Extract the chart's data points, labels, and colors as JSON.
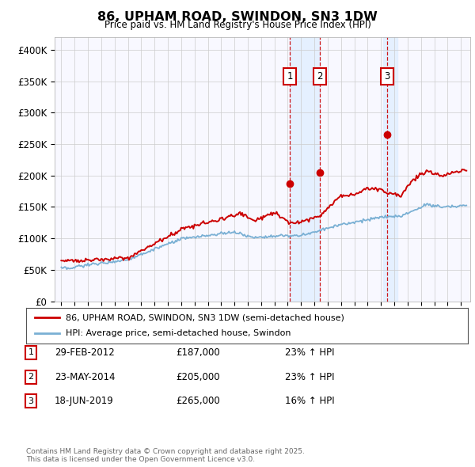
{
  "title": "86, UPHAM ROAD, SWINDON, SN3 1DW",
  "subtitle": "Price paid vs. HM Land Registry's House Price Index (HPI)",
  "legend_line1": "86, UPHAM ROAD, SWINDON, SN3 1DW (semi-detached house)",
  "legend_line2": "HPI: Average price, semi-detached house, Swindon",
  "footer": "Contains HM Land Registry data © Crown copyright and database right 2025.\nThis data is licensed under the Open Government Licence v3.0.",
  "transactions": [
    {
      "num": 1,
      "date": "29-FEB-2012",
      "price": "£187,000",
      "hpi": "23% ↑ HPI",
      "year": 2012.16
    },
    {
      "num": 2,
      "date": "23-MAY-2014",
      "price": "£205,000",
      "hpi": "23% ↑ HPI",
      "year": 2014.39
    },
    {
      "num": 3,
      "date": "18-JUN-2019",
      "price": "£265,000",
      "hpi": "16% ↑ HPI",
      "year": 2019.46
    }
  ],
  "trans_prices": [
    187000,
    205000,
    265000
  ],
  "red_color": "#cc0000",
  "blue_color": "#7ab0d4",
  "shade_color": "#ddeeff",
  "grid_color": "#cccccc",
  "background_color": "#ffffff",
  "plot_bg_color": "#f8f8ff",
  "ylim": [
    0,
    420000
  ],
  "yticks": [
    0,
    50000,
    100000,
    150000,
    200000,
    250000,
    300000,
    350000,
    400000
  ],
  "ytick_labels": [
    "£0",
    "£50K",
    "£100K",
    "£150K",
    "£200K",
    "£250K",
    "£300K",
    "£350K",
    "£400K"
  ],
  "xlim_start": 1994.5,
  "xlim_end": 2025.7
}
